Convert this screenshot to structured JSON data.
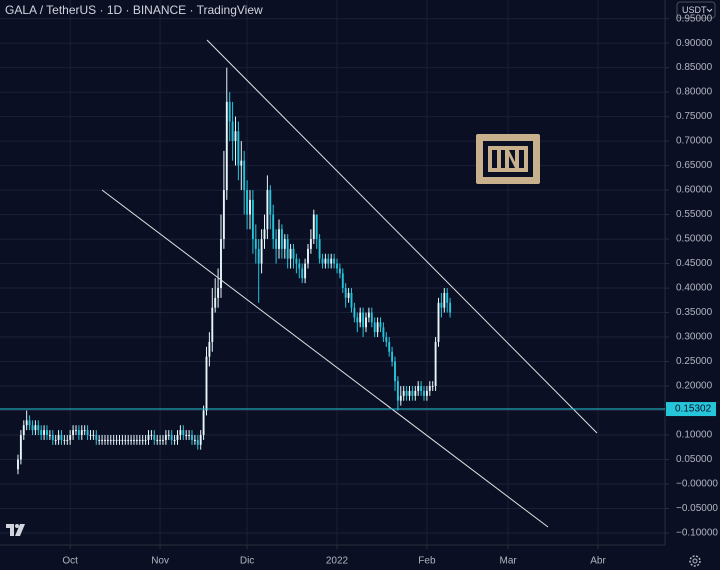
{
  "chart_data": {
    "type": "candlestick",
    "title": "GALA / TetherUS · 1D · BINANCE · TradingView",
    "currency": "USDT",
    "up_color": "#e6f7fb",
    "down_color": "#26c6da",
    "open": [
      0.03,
      0.05,
      0.1,
      0.12,
      0.13,
      0.12,
      0.11,
      0.12,
      0.11,
      0.1,
      0.11,
      0.1,
      0.1,
      0.09,
      0.09,
      0.1,
      0.09,
      0.09,
      0.09,
      0.1,
      0.11,
      0.11,
      0.1,
      0.11,
      0.11,
      0.1,
      0.1,
      0.1,
      0.09,
      0.09,
      0.09,
      0.09,
      0.09,
      0.09,
      0.09,
      0.09,
      0.09,
      0.09,
      0.09,
      0.09,
      0.09,
      0.09,
      0.09,
      0.09,
      0.09,
      0.09,
      0.1,
      0.1,
      0.09,
      0.09,
      0.09,
      0.09,
      0.1,
      0.1,
      0.09,
      0.09,
      0.1,
      0.11,
      0.1,
      0.1,
      0.1,
      0.09,
      0.09,
      0.08,
      0.1,
      0.15,
      0.26,
      0.29,
      0.36,
      0.38,
      0.4,
      0.5,
      0.6,
      0.78,
      0.74,
      0.7,
      0.72,
      0.65,
      0.66,
      0.6,
      0.55,
      0.58,
      0.5,
      0.48,
      0.45,
      0.5,
      0.52,
      0.6,
      0.55,
      0.5,
      0.48,
      0.52,
      0.48,
      0.5,
      0.46,
      0.48,
      0.46,
      0.45,
      0.44,
      0.42,
      0.45,
      0.48,
      0.5,
      0.55,
      0.5,
      0.46,
      0.45,
      0.46,
      0.45,
      0.46,
      0.45,
      0.44,
      0.43,
      0.4,
      0.38,
      0.39,
      0.36,
      0.34,
      0.33,
      0.35,
      0.32,
      0.34,
      0.35,
      0.33,
      0.31,
      0.33,
      0.32,
      0.3,
      0.29,
      0.27,
      0.25,
      0.21,
      0.17,
      0.18,
      0.19,
      0.18,
      0.19,
      0.18,
      0.19,
      0.2,
      0.19,
      0.18,
      0.19,
      0.2,
      0.2,
      0.29,
      0.37,
      0.36,
      0.39,
      0.37
    ],
    "high": [
      0.06,
      0.11,
      0.13,
      0.15,
      0.14,
      0.13,
      0.13,
      0.13,
      0.12,
      0.12,
      0.12,
      0.11,
      0.11,
      0.1,
      0.11,
      0.11,
      0.1,
      0.1,
      0.11,
      0.12,
      0.12,
      0.12,
      0.12,
      0.12,
      0.12,
      0.11,
      0.11,
      0.11,
      0.1,
      0.1,
      0.1,
      0.1,
      0.1,
      0.1,
      0.1,
      0.1,
      0.1,
      0.1,
      0.1,
      0.1,
      0.1,
      0.1,
      0.1,
      0.1,
      0.1,
      0.11,
      0.11,
      0.11,
      0.1,
      0.1,
      0.1,
      0.11,
      0.11,
      0.11,
      0.1,
      0.11,
      0.12,
      0.12,
      0.11,
      0.11,
      0.11,
      0.1,
      0.1,
      0.11,
      0.16,
      0.28,
      0.31,
      0.4,
      0.42,
      0.44,
      0.55,
      0.68,
      0.85,
      0.8,
      0.78,
      0.75,
      0.74,
      0.7,
      0.68,
      0.62,
      0.6,
      0.6,
      0.53,
      0.5,
      0.52,
      0.55,
      0.63,
      0.61,
      0.57,
      0.52,
      0.54,
      0.53,
      0.51,
      0.51,
      0.49,
      0.49,
      0.47,
      0.46,
      0.45,
      0.46,
      0.49,
      0.52,
      0.56,
      0.55,
      0.51,
      0.47,
      0.47,
      0.47,
      0.47,
      0.47,
      0.46,
      0.45,
      0.44,
      0.41,
      0.4,
      0.4,
      0.37,
      0.35,
      0.36,
      0.36,
      0.35,
      0.36,
      0.36,
      0.34,
      0.34,
      0.34,
      0.33,
      0.31,
      0.3,
      0.28,
      0.26,
      0.22,
      0.2,
      0.2,
      0.2,
      0.2,
      0.2,
      0.2,
      0.21,
      0.21,
      0.2,
      0.2,
      0.21,
      0.21,
      0.3,
      0.38,
      0.39,
      0.4,
      0.4,
      0.38
    ],
    "low": [
      0.02,
      0.04,
      0.09,
      0.11,
      0.11,
      0.1,
      0.1,
      0.1,
      0.09,
      0.09,
      0.09,
      0.09,
      0.08,
      0.08,
      0.08,
      0.08,
      0.08,
      0.08,
      0.08,
      0.09,
      0.1,
      0.09,
      0.09,
      0.1,
      0.09,
      0.09,
      0.09,
      0.08,
      0.08,
      0.08,
      0.08,
      0.08,
      0.08,
      0.08,
      0.08,
      0.08,
      0.08,
      0.08,
      0.08,
      0.08,
      0.08,
      0.08,
      0.08,
      0.08,
      0.08,
      0.08,
      0.09,
      0.08,
      0.08,
      0.08,
      0.08,
      0.08,
      0.09,
      0.08,
      0.08,
      0.08,
      0.09,
      0.09,
      0.09,
      0.09,
      0.08,
      0.08,
      0.07,
      0.07,
      0.09,
      0.14,
      0.24,
      0.27,
      0.35,
      0.36,
      0.38,
      0.48,
      0.58,
      0.7,
      0.66,
      0.65,
      0.62,
      0.6,
      0.55,
      0.52,
      0.52,
      0.47,
      0.45,
      0.37,
      0.43,
      0.48,
      0.5,
      0.52,
      0.48,
      0.45,
      0.46,
      0.46,
      0.46,
      0.44,
      0.44,
      0.44,
      0.43,
      0.42,
      0.41,
      0.41,
      0.44,
      0.47,
      0.49,
      0.48,
      0.45,
      0.44,
      0.44,
      0.44,
      0.44,
      0.44,
      0.43,
      0.42,
      0.39,
      0.36,
      0.37,
      0.35,
      0.33,
      0.31,
      0.32,
      0.3,
      0.31,
      0.33,
      0.32,
      0.3,
      0.3,
      0.31,
      0.29,
      0.28,
      0.26,
      0.24,
      0.19,
      0.15,
      0.16,
      0.17,
      0.17,
      0.17,
      0.17,
      0.17,
      0.18,
      0.18,
      0.17,
      0.17,
      0.18,
      0.19,
      0.19,
      0.28,
      0.34,
      0.35,
      0.35,
      0.34
    ],
    "close": [
      0.05,
      0.1,
      0.12,
      0.13,
      0.12,
      0.11,
      0.12,
      0.11,
      0.1,
      0.11,
      0.1,
      0.1,
      0.09,
      0.09,
      0.1,
      0.09,
      0.09,
      0.09,
      0.1,
      0.11,
      0.11,
      0.1,
      0.11,
      0.11,
      0.1,
      0.1,
      0.1,
      0.09,
      0.09,
      0.09,
      0.09,
      0.09,
      0.09,
      0.09,
      0.09,
      0.09,
      0.09,
      0.09,
      0.09,
      0.09,
      0.09,
      0.09,
      0.09,
      0.09,
      0.09,
      0.1,
      0.1,
      0.09,
      0.09,
      0.09,
      0.09,
      0.1,
      0.1,
      0.09,
      0.09,
      0.1,
      0.11,
      0.1,
      0.1,
      0.1,
      0.09,
      0.09,
      0.08,
      0.1,
      0.15,
      0.26,
      0.29,
      0.36,
      0.38,
      0.4,
      0.5,
      0.6,
      0.78,
      0.74,
      0.7,
      0.72,
      0.65,
      0.66,
      0.6,
      0.55,
      0.58,
      0.5,
      0.48,
      0.45,
      0.5,
      0.52,
      0.6,
      0.55,
      0.5,
      0.48,
      0.52,
      0.48,
      0.5,
      0.46,
      0.48,
      0.46,
      0.45,
      0.44,
      0.42,
      0.45,
      0.48,
      0.5,
      0.55,
      0.5,
      0.46,
      0.45,
      0.46,
      0.45,
      0.46,
      0.45,
      0.44,
      0.43,
      0.4,
      0.38,
      0.39,
      0.36,
      0.34,
      0.33,
      0.35,
      0.32,
      0.34,
      0.35,
      0.33,
      0.31,
      0.33,
      0.32,
      0.3,
      0.29,
      0.27,
      0.25,
      0.21,
      0.17,
      0.18,
      0.19,
      0.18,
      0.19,
      0.18,
      0.19,
      0.2,
      0.19,
      0.18,
      0.19,
      0.2,
      0.2,
      0.29,
      0.37,
      0.36,
      0.39,
      0.37,
      0.35
    ],
    "price_line": {
      "value": 0.15302,
      "color": "#26c6da"
    },
    "xlim": [
      -6.2,
      223.1
    ],
    "xticks": [
      {
        "value": 18,
        "label": "Oct"
      },
      {
        "value": 49,
        "label": "Nov"
      },
      {
        "value": 79,
        "label": "Dic"
      },
      {
        "value": 110,
        "label": "2022"
      },
      {
        "value": 141,
        "label": "Feb"
      },
      {
        "value": 169,
        "label": "Mar"
      },
      {
        "value": 200,
        "label": "Abr"
      }
    ],
    "ylim": [
      -0.1245,
      0.988
    ],
    "yticks": [
      {
        "value": -0.1,
        "label": "−0.10000"
      },
      {
        "value": -0.05,
        "label": "−0.05000"
      },
      {
        "value": 0,
        "label": "−0.00000"
      },
      {
        "value": 0.05,
        "label": "0.05000"
      },
      {
        "value": 0.1,
        "label": "0.10000"
      },
      {
        "value": 0.15,
        "label": "0.15000"
      },
      {
        "value": 0.2,
        "label": "0.20000"
      },
      {
        "value": 0.25,
        "label": "0.25000"
      },
      {
        "value": 0.3,
        "label": "0.30000"
      },
      {
        "value": 0.35,
        "label": "0.35000"
      },
      {
        "value": 0.4,
        "label": "0.40000"
      },
      {
        "value": 0.45,
        "label": "0.45000"
      },
      {
        "value": 0.5,
        "label": "0.50000"
      },
      {
        "value": 0.55,
        "label": "0.55000"
      },
      {
        "value": 0.6,
        "label": "0.60000"
      },
      {
        "value": 0.65,
        "label": "0.65000"
      },
      {
        "value": 0.7,
        "label": "0.70000"
      },
      {
        "value": 0.75,
        "label": "0.75000"
      },
      {
        "value": 0.8,
        "label": "0.80000"
      },
      {
        "value": 0.85,
        "label": "0.85000"
      },
      {
        "value": 0.9,
        "label": "0.90000"
      },
      {
        "value": 0.95,
        "label": "0.95000"
      }
    ],
    "grid": true
  }
}
